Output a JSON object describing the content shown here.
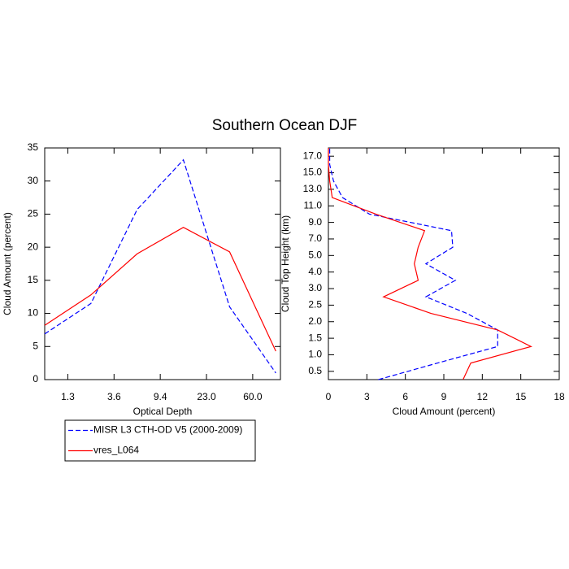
{
  "title": "Southern Ocean DJF",
  "chart_data": [
    {
      "type": "line",
      "xlabel": "Optical Depth",
      "ylabel": "Cloud Amount (percent)",
      "x": [
        0,
        1,
        2,
        3,
        4,
        5
      ],
      "xlim": [
        0,
        5.1
      ],
      "xticks": [
        {
          "value": 0.5,
          "label": "1.3"
        },
        {
          "value": 1.5,
          "label": "3.6"
        },
        {
          "value": 2.5,
          "label": "9.4"
        },
        {
          "value": 3.5,
          "label": "23.0"
        },
        {
          "value": 4.5,
          "label": "60.0"
        }
      ],
      "ylim": [
        0,
        35
      ],
      "yticks": [
        0,
        5,
        10,
        15,
        20,
        25,
        30,
        35
      ],
      "legend": "below",
      "series": [
        {
          "name": "MISR L3 CTH-OD V5 (2000-2009)",
          "color": "#0000ff",
          "dash": true,
          "values": [
            6.9,
            11.5,
            25.7,
            33.2,
            11.0,
            1.0
          ]
        },
        {
          "name": "vres_L064",
          "color": "#ff0000",
          "dash": false,
          "values": [
            8.2,
            12.8,
            19.0,
            23.0,
            19.3,
            4.3
          ]
        }
      ]
    },
    {
      "type": "line",
      "orientation": "horizontal",
      "xlabel": "Cloud Amount (percent)",
      "ylabel": "Cloud Top Height (km)",
      "y": [
        0,
        1,
        2,
        3,
        4,
        5,
        6,
        7,
        8,
        9,
        10,
        11,
        12,
        13,
        14
      ],
      "ylim": [
        0,
        14
      ],
      "yticks": [
        {
          "value": 0.5,
          "label": "0.5"
        },
        {
          "value": 1.5,
          "label": "1.0"
        },
        {
          "value": 2.5,
          "label": "1.5"
        },
        {
          "value": 3.5,
          "label": "2.0"
        },
        {
          "value": 4.5,
          "label": "2.5"
        },
        {
          "value": 5.5,
          "label": "3.0"
        },
        {
          "value": 6.5,
          "label": "4.0"
        },
        {
          "value": 7.5,
          "label": "5.0"
        },
        {
          "value": 8.5,
          "label": "7.0"
        },
        {
          "value": 9.5,
          "label": "9.0"
        },
        {
          "value": 10.5,
          "label": "11.0"
        },
        {
          "value": 11.5,
          "label": "13.0"
        },
        {
          "value": 12.5,
          "label": "15.0"
        },
        {
          "value": 13.5,
          "label": "17.0"
        }
      ],
      "xlim": [
        0,
        18
      ],
      "xticks": [
        0,
        3,
        6,
        9,
        12,
        15,
        18
      ],
      "series": [
        {
          "name": "MISR L3 CTH-OD V5 (2000-2009)",
          "color": "#0000ff",
          "dash": true,
          "values": [
            3.9,
            8.5,
            13.2,
            13.2,
            10.8,
            7.6,
            9.9,
            7.6,
            9.7,
            9.6,
            3.2,
            1.1,
            0.4,
            0.1,
            0.1
          ]
        },
        {
          "name": "vres_L064",
          "color": "#ff0000",
          "dash": false,
          "values": [
            10.5,
            11.1,
            15.8,
            13.2,
            8.0,
            4.3,
            7.0,
            6.7,
            7.0,
            7.5,
            3.7,
            0.3,
            0.1,
            0,
            0
          ]
        }
      ]
    }
  ]
}
